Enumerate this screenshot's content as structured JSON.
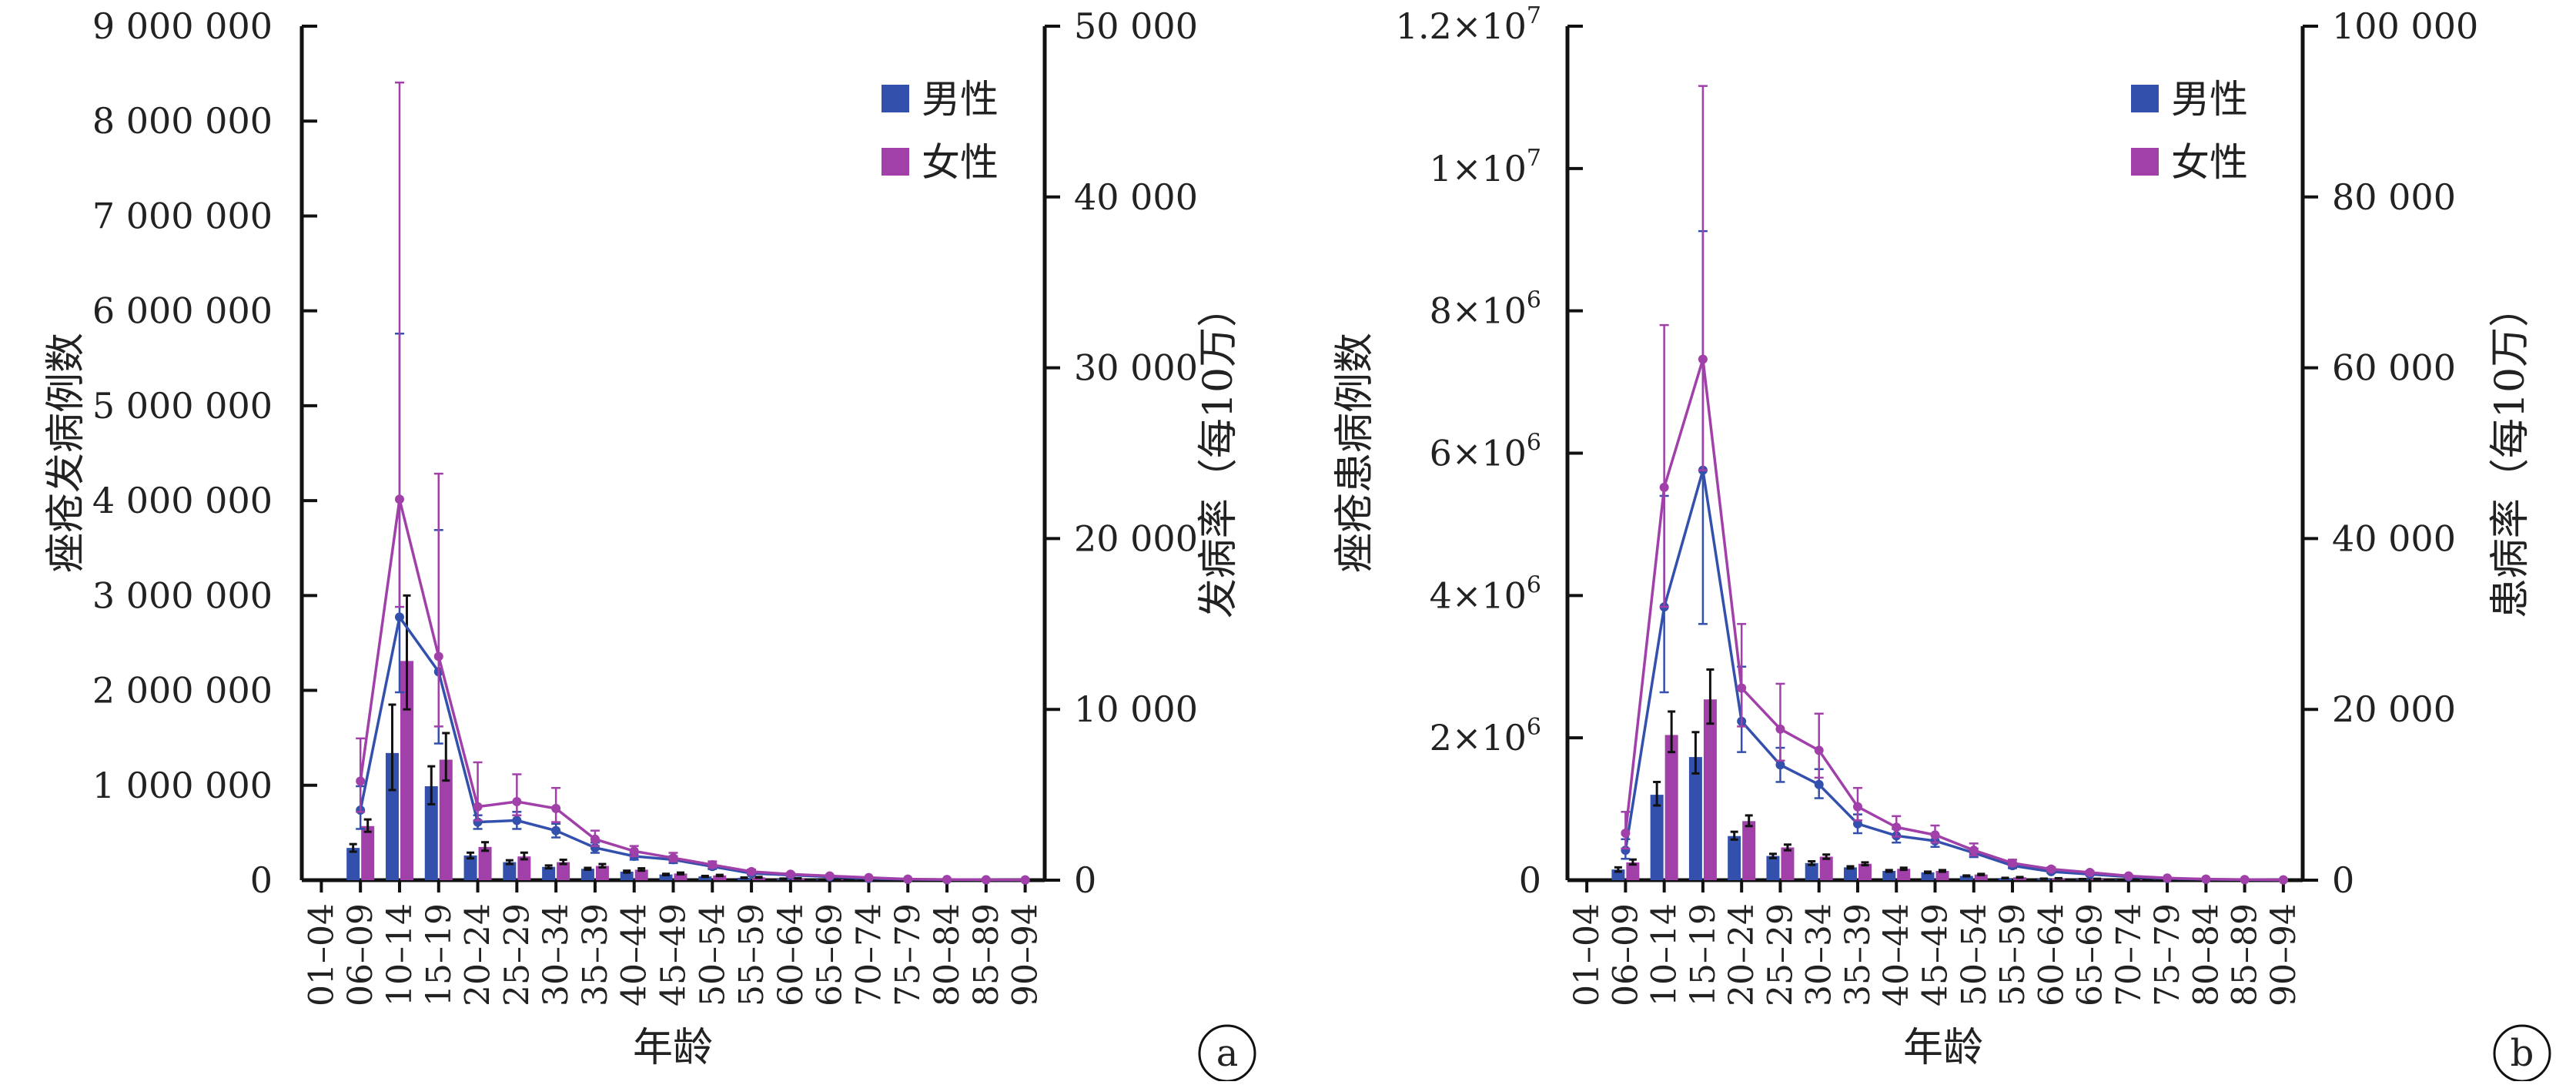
{
  "colors": {
    "male": "#3350ad",
    "female": "#a040a8",
    "axis": "#111111",
    "text": "#222222",
    "errbar": "#111111"
  },
  "chart_data": [
    {
      "panel_label": "a",
      "type": "bar",
      "ylabel_left": "痤疮发病例数",
      "ylabel_right": "发病率（每10万）",
      "xlabel": "年龄",
      "categories": [
        "01–04",
        "06–09",
        "10–14",
        "15–19",
        "20–24",
        "25–29",
        "30–34",
        "35–39",
        "40–44",
        "45–49",
        "50–54",
        "55–59",
        "60–64",
        "65–69",
        "70–74",
        "75–79",
        "80–84",
        "85–89",
        "90–94"
      ],
      "left_axis": {
        "min": 0,
        "max": 9000000,
        "ticks": [
          0,
          1000000,
          2000000,
          3000000,
          4000000,
          5000000,
          6000000,
          7000000,
          8000000,
          9000000
        ],
        "tick_labels": [
          "0",
          "1 000 000",
          "2 000 000",
          "3 000 000",
          "4 000 000",
          "5 000 000",
          "6 000 000",
          "7 000 000",
          "8 000 000",
          "9 000 000"
        ]
      },
      "right_axis": {
        "min": 0,
        "max": 50000,
        "ticks": [
          0,
          10000,
          20000,
          30000,
          40000,
          50000
        ],
        "tick_labels": [
          "0",
          "10 000",
          "20 000",
          "30 000",
          "40 000",
          "50 000"
        ]
      },
      "legend": [
        "男性",
        "女性"
      ],
      "legend_position": "top-right",
      "bar_series": [
        {
          "name": "男性",
          "values": [
            0,
            340000,
            1340000,
            990000,
            260000,
            190000,
            140000,
            120000,
            90000,
            60000,
            40000,
            25000,
            15000,
            8000,
            4000,
            2000,
            1000,
            500,
            200
          ],
          "err_low": [
            0,
            300000,
            950000,
            800000,
            230000,
            170000,
            125000,
            110000,
            80000,
            53000,
            35000,
            22000,
            13000,
            7000,
            3500,
            1700,
            800,
            400,
            150
          ],
          "err_high": [
            0,
            380000,
            1850000,
            1200000,
            290000,
            210000,
            155000,
            130000,
            100000,
            67000,
            45000,
            28000,
            17000,
            9000,
            4500,
            2300,
            1200,
            600,
            250
          ]
        },
        {
          "name": "女性",
          "values": [
            0,
            570000,
            2310000,
            1270000,
            350000,
            250000,
            190000,
            150000,
            110000,
            70000,
            50000,
            30000,
            18000,
            9000,
            5000,
            2500,
            1200,
            600,
            250
          ],
          "err_low": [
            0,
            510000,
            1800000,
            1050000,
            310000,
            220000,
            170000,
            135000,
            100000,
            62000,
            44000,
            26000,
            16000,
            8000,
            4400,
            2200,
            1000,
            500,
            200
          ],
          "err_high": [
            0,
            640000,
            3000000,
            1550000,
            400000,
            290000,
            215000,
            170000,
            125000,
            80000,
            56000,
            34000,
            20000,
            10000,
            5600,
            2800,
            1400,
            700,
            300
          ]
        }
      ],
      "line_series": [
        {
          "name": "男性",
          "values": [
            null,
            4100,
            15400,
            12200,
            3400,
            3500,
            2900,
            1900,
            1400,
            1200,
            800,
            400,
            300,
            200,
            100,
            50,
            30,
            20,
            10
          ],
          "err_low": [
            null,
            3000,
            11000,
            8000,
            3000,
            3000,
            2500,
            1600,
            1200,
            1000,
            650,
            330,
            240,
            150,
            80,
            40,
            20,
            15,
            5
          ],
          "err_high": [
            null,
            5500,
            32000,
            20500,
            3800,
            4000,
            3300,
            2200,
            1600,
            1400,
            950,
            480,
            360,
            250,
            120,
            60,
            40,
            25,
            15
          ]
        },
        {
          "name": "女性",
          "values": [
            null,
            5800,
            22300,
            13100,
            4300,
            4600,
            4200,
            2400,
            1700,
            1300,
            900,
            500,
            350,
            250,
            150,
            60,
            40,
            25,
            15
          ],
          "err_low": [
            null,
            4000,
            16000,
            9000,
            3500,
            3800,
            3400,
            2000,
            1400,
            1100,
            750,
            400,
            280,
            190,
            110,
            45,
            30,
            18,
            10
          ],
          "err_high": [
            null,
            8300,
            46700,
            23800,
            6900,
            6200,
            5400,
            2900,
            2000,
            1600,
            1100,
            620,
            420,
            300,
            180,
            75,
            50,
            30,
            20
          ]
        }
      ]
    },
    {
      "panel_label": "b",
      "type": "bar",
      "ylabel_left": "痤疮患病例数",
      "ylabel_right": "患病率（每10万）",
      "xlabel": "年龄",
      "categories": [
        "01–04",
        "06–09",
        "10–14",
        "15–19",
        "20–24",
        "25–29",
        "30–34",
        "35–39",
        "40–44",
        "45–49",
        "50–54",
        "55–59",
        "60–64",
        "65–69",
        "70–74",
        "75–79",
        "80–84",
        "85–89",
        "90–94"
      ],
      "left_axis": {
        "min": 0,
        "max": 12000000,
        "ticks": [
          0,
          2000000,
          4000000,
          6000000,
          8000000,
          10000000,
          12000000
        ],
        "tick_labels": [
          {
            "mant": "0",
            "exp": ""
          },
          {
            "mant": "2×10",
            "exp": "6"
          },
          {
            "mant": "4×10",
            "exp": "6"
          },
          {
            "mant": "6×10",
            "exp": "6"
          },
          {
            "mant": "8×10",
            "exp": "6"
          },
          {
            "mant": "1×10",
            "exp": "7"
          },
          {
            "mant": "1.2×10",
            "exp": "7"
          }
        ]
      },
      "right_axis": {
        "min": 0,
        "max": 100000,
        "ticks": [
          0,
          20000,
          40000,
          60000,
          80000,
          100000
        ],
        "tick_labels": [
          "0",
          "20 000",
          "40 000",
          "60 000",
          "80 000",
          "100 000"
        ]
      },
      "legend": [
        "男性",
        "女性"
      ],
      "legend_position": "top-right",
      "bar_series": [
        {
          "name": "男性",
          "values": [
            0,
            150000,
            1200000,
            1730000,
            620000,
            340000,
            240000,
            180000,
            130000,
            110000,
            60000,
            30000,
            20000,
            15000,
            10000,
            5000,
            3000,
            1500,
            800
          ],
          "err_low": [
            0,
            120000,
            1050000,
            1500000,
            570000,
            310000,
            215000,
            165000,
            118000,
            100000,
            54000,
            27000,
            18000,
            13500,
            9000,
            4500,
            2700,
            1300,
            700
          ],
          "err_high": [
            0,
            180000,
            1380000,
            2080000,
            680000,
            370000,
            265000,
            195000,
            142000,
            120000,
            66000,
            33000,
            22000,
            16500,
            11000,
            5500,
            3300,
            1700,
            900
          ]
        },
        {
          "name": "女性",
          "values": [
            0,
            250000,
            2040000,
            2540000,
            830000,
            460000,
            330000,
            230000,
            160000,
            130000,
            80000,
            40000,
            25000,
            18000,
            12000,
            6000,
            3500,
            1800,
            900
          ],
          "err_low": [
            0,
            220000,
            1800000,
            2200000,
            760000,
            420000,
            300000,
            210000,
            145000,
            118000,
            72000,
            36000,
            22000,
            16000,
            10800,
            5400,
            3100,
            1600,
            800
          ],
          "err_high": [
            0,
            290000,
            2370000,
            2960000,
            910000,
            500000,
            360000,
            250000,
            175000,
            142000,
            88000,
            44000,
            28000,
            20000,
            13200,
            6600,
            3900,
            2000,
            1000
          ]
        }
      ],
      "line_series": [
        {
          "name": "男性",
          "values": [
            null,
            3500,
            32000,
            48000,
            18600,
            13500,
            11200,
            6600,
            5200,
            4600,
            3200,
            1700,
            1000,
            700,
            400,
            200,
            100,
            60,
            30
          ],
          "err_low": [
            null,
            2500,
            22000,
            30000,
            15000,
            11500,
            9600,
            5500,
            4400,
            3900,
            2700,
            1400,
            850,
            600,
            330,
            170,
            85,
            50,
            25
          ],
          "err_high": [
            null,
            4800,
            45000,
            76000,
            25000,
            15500,
            13000,
            7700,
            6000,
            5300,
            3700,
            2000,
            1200,
            800,
            470,
            230,
            120,
            70,
            35
          ]
        },
        {
          "name": "女性",
          "values": [
            null,
            5500,
            46000,
            61000,
            22500,
            17700,
            15200,
            8600,
            6200,
            5300,
            3500,
            2000,
            1300,
            900,
            500,
            250,
            120,
            70,
            35
          ],
          "err_low": [
            null,
            3700,
            32000,
            48000,
            18000,
            14000,
            12000,
            7000,
            5100,
            4400,
            2900,
            1700,
            1100,
            750,
            420,
            210,
            100,
            60,
            30
          ],
          "err_high": [
            null,
            8000,
            65000,
            93000,
            30000,
            23000,
            19500,
            10800,
            7500,
            6400,
            4300,
            2400,
            1500,
            1050,
            600,
            300,
            140,
            80,
            40
          ]
        }
      ]
    }
  ]
}
